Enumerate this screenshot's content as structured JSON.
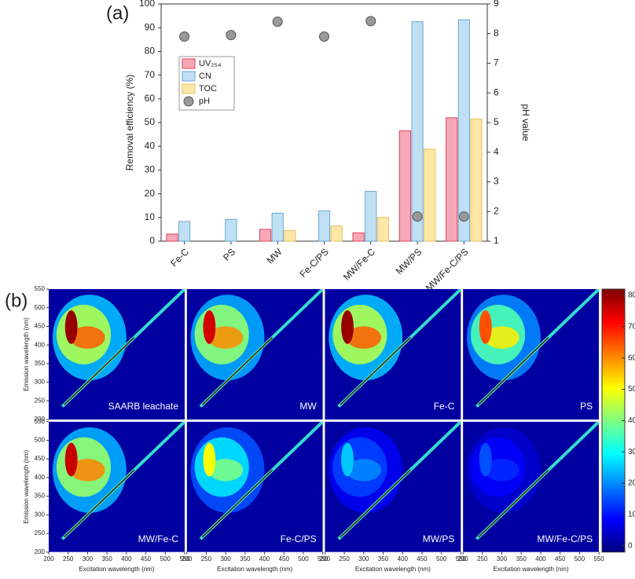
{
  "chart_data": [
    {
      "type": "bar",
      "panel_label": "(a)",
      "ylabel": "Removal efficiency (%)",
      "y2label": "pH value",
      "categories": [
        "Fe-C",
        "PS",
        "MW",
        "Fe-C/PS",
        "MW/Fe-C",
        "MW/PS",
        "MW/Fe-C/PS"
      ],
      "series": [
        {
          "name": "UV₂₅₄",
          "color": "#f7a8b8",
          "edge": "#e0405a",
          "values": [
            3,
            null,
            5,
            null,
            3.5,
            46.5,
            52
          ]
        },
        {
          "name": "CN",
          "color": "#bfe0f4",
          "edge": "#6aa8d0",
          "values": [
            8.3,
            9.2,
            11.8,
            12.8,
            21,
            92.5,
            93.3
          ]
        },
        {
          "name": "TOC",
          "color": "#fde7a6",
          "edge": "#e8c060",
          "values": [
            null,
            null,
            4.5,
            6.4,
            10,
            38.8,
            51.5
          ]
        },
        {
          "name": "pH",
          "type": "scatter",
          "axis": "y2",
          "color": "#999999",
          "edge": "#555555",
          "values": [
            7.9,
            7.95,
            8.4,
            7.9,
            8.42,
            1.83,
            1.83
          ]
        }
      ],
      "ylim": [
        0,
        100
      ],
      "yticks": [
        0,
        10,
        20,
        30,
        40,
        50,
        60,
        70,
        80,
        90,
        100
      ],
      "y2lim": [
        1,
        9
      ],
      "y2ticks": [
        1,
        2,
        3,
        4,
        5,
        6,
        7,
        8,
        9
      ],
      "legend": "upper left"
    },
    {
      "type": "eem",
      "panel_label": "(b)",
      "xlabel": "Excitation wavelength (nm)",
      "ylabel": "Emission wavelength (nm)",
      "xlim": [
        200,
        550
      ],
      "xticks": [
        200,
        250,
        300,
        350,
        400,
        450,
        500,
        550
      ],
      "ylim": [
        200,
        550
      ],
      "yticks": [
        200,
        250,
        300,
        350,
        400,
        450,
        500,
        550
      ],
      "clim": [
        -20,
        820
      ],
      "cticks": [
        0,
        100,
        200,
        300,
        400,
        500,
        600,
        700,
        800
      ],
      "panels": [
        {
          "label": "SAARB leachate",
          "peak": 800
        },
        {
          "label": "MW",
          "peak": 750
        },
        {
          "label": "Fe-C",
          "peak": 800
        },
        {
          "label": "PS",
          "peak": 650
        },
        {
          "label": "MW/Fe-C",
          "peak": 760
        },
        {
          "label": "Fe-C/PS",
          "peak": 500
        },
        {
          "label": "MW/PS",
          "peak": 250
        },
        {
          "label": "MW/Fe-C/PS",
          "peak": 150
        }
      ]
    }
  ]
}
